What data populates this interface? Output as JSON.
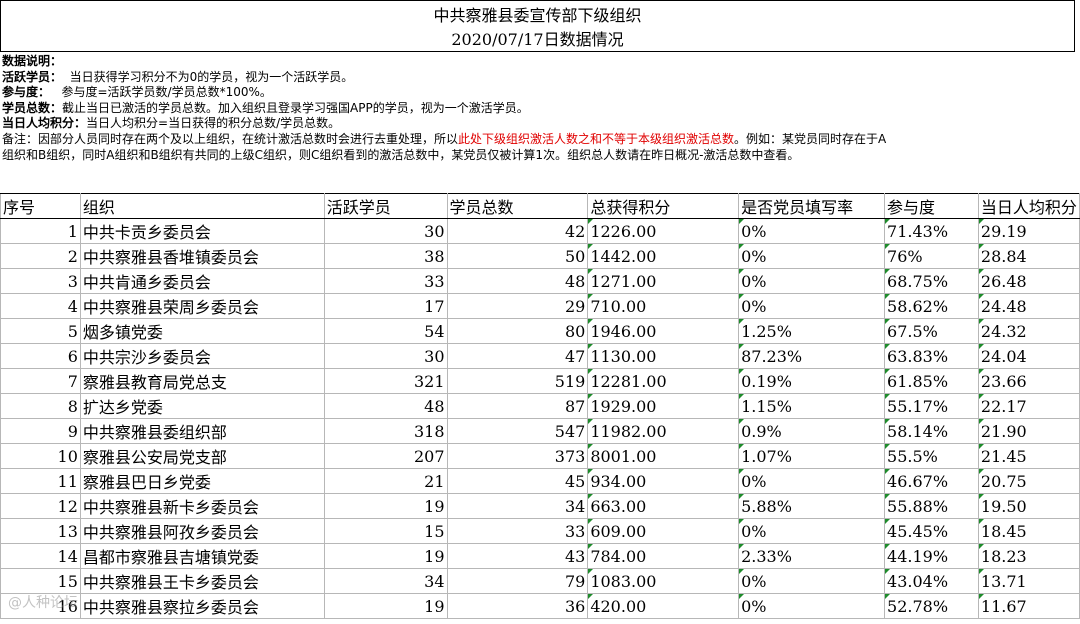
{
  "title": {
    "line1": "中共察雅县委宣传部下级组织",
    "line2": "2020/07/17日数据情况"
  },
  "notes": {
    "heading": "数据说明：",
    "active_label": "活跃学员：",
    "active_text": "当日获得学习积分不为0的学员，视为一个活跃学员。",
    "participation_label": "参与度：",
    "participation_text": "参与度=活跃学员数/学员总数*100%。",
    "total_label": "学员总数：",
    "total_text": "截止当日已激活的学员总数。加入组织且登录学习强国APP的学员，视为一个激活学员。",
    "avg_label": "当日人均积分：",
    "avg_text": "当日人均积分=当日获得的积分总数/学员总数。",
    "remark_prefix": "备注：因部分人员同时存在两个及以上组织，在统计激活总数时会进行去重处理，所以",
    "remark_red": "此处下级组织激活人数之和不等于本级组织激活总数",
    "remark_suffix": "。例如：某党员同时存在于A",
    "remark_line2": "组织和B组织，同时A组织和B组织有共同的上级C组织，则C组织看到的激活总数中，某党员仅被计算1次。组织总人数请在昨日概况-激活总数中查看。"
  },
  "table": {
    "headers": [
      "序号",
      "组织",
      "活跃学员",
      "学员总数",
      "总获得积分",
      "是否党员填写率",
      "参与度",
      "当日人均积分"
    ],
    "rows": [
      [
        "1",
        "中共卡贡乡委员会",
        "30",
        "42",
        "1226.00",
        "0%",
        "71.43%",
        "29.19"
      ],
      [
        "2",
        "中共察雅县香堆镇委员会",
        "38",
        "50",
        "1442.00",
        "0%",
        "76%",
        "28.84"
      ],
      [
        "3",
        "中共肯通乡委员会",
        "33",
        "48",
        "1271.00",
        "0%",
        "68.75%",
        "26.48"
      ],
      [
        "4",
        "中共察雅县荣周乡委员会",
        "17",
        "29",
        "710.00",
        "0%",
        "58.62%",
        "24.48"
      ],
      [
        "5",
        "烟多镇党委",
        "54",
        "80",
        "1946.00",
        "1.25%",
        "67.5%",
        "24.32"
      ],
      [
        "6",
        "中共宗沙乡委员会",
        "30",
        "47",
        "1130.00",
        "87.23%",
        "63.83%",
        "24.04"
      ],
      [
        "7",
        "察雅县教育局党总支",
        "321",
        "519",
        "12281.00",
        "0.19%",
        "61.85%",
        "23.66"
      ],
      [
        "8",
        "扩达乡党委",
        "48",
        "87",
        "1929.00",
        "1.15%",
        "55.17%",
        "22.17"
      ],
      [
        "9",
        "中共察雅县委组织部",
        "318",
        "547",
        "11982.00",
        "0.9%",
        "58.14%",
        "21.90"
      ],
      [
        "10",
        "察雅县公安局党支部",
        "207",
        "373",
        "8001.00",
        "1.07%",
        "55.5%",
        "21.45"
      ],
      [
        "11",
        "察雅县巴日乡党委",
        "21",
        "45",
        "934.00",
        "0%",
        "46.67%",
        "20.75"
      ],
      [
        "12",
        "中共察雅县新卡乡委员会",
        "19",
        "34",
        "663.00",
        "5.88%",
        "55.88%",
        "19.50"
      ],
      [
        "13",
        "中共察雅县阿孜乡委员会",
        "15",
        "33",
        "609.00",
        "0%",
        "45.45%",
        "18.45"
      ],
      [
        "14",
        "昌都市察雅县吉塘镇党委",
        "19",
        "43",
        "784.00",
        "2.33%",
        "44.19%",
        "18.23"
      ],
      [
        "15",
        "中共察雅县王卡乡委员会",
        "34",
        "79",
        "1083.00",
        "0%",
        "43.04%",
        "13.71"
      ],
      [
        "16",
        "中共察雅县察拉乡委员会",
        "19",
        "36",
        "420.00",
        "0%",
        "52.78%",
        "11.67"
      ]
    ]
  },
  "watermark": "@人种论坛"
}
